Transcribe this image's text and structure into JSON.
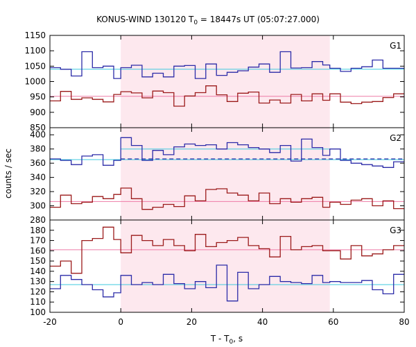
{
  "title_main": "KONUS-WIND 130120 T",
  "title_sub": "0",
  "title_rest": " = 18447s UT (05:07:27.000)",
  "ylabel": "counts / sec",
  "xlabel_main": "T - T",
  "xlabel_sub": "0",
  "xlabel_rest": ", s",
  "colors": {
    "blue": "#2b2ba8",
    "red": "#9b1a1a",
    "cyan": "#3fc9df",
    "pink": "#ee7ba6",
    "shade": "#fde8ee"
  },
  "chart_data": {
    "type": "line",
    "step": "histogram",
    "x": {
      "label": "T - T0, s",
      "lim": [
        -20,
        80
      ],
      "ticks": [
        -20,
        0,
        20,
        40,
        60,
        80
      ]
    },
    "shaded_interval": [
      0,
      59
    ],
    "panels": [
      {
        "name": "G1",
        "ylim": [
          850,
          1150
        ],
        "yticks": [
          850,
          900,
          950,
          1000,
          1050,
          1100,
          1150
        ],
        "series": [
          {
            "color": "blue",
            "edges": [
              -20,
              -17,
              -14,
              -11,
              -8,
              -5,
              -2,
              0,
              3,
              6,
              9,
              12,
              15,
              18,
              21,
              24,
              27,
              30,
              33,
              36,
              39,
              42,
              45,
              48,
              51,
              54,
              57,
              59,
              62,
              65,
              68,
              71,
              74,
              77,
              80
            ],
            "values": [
              1045,
              1040,
              1018,
              1097,
              1045,
              1050,
              1010,
              1045,
              1053,
              1015,
              1027,
              1015,
              1050,
              1052,
              1010,
              1057,
              1020,
              1030,
              1035,
              1047,
              1057,
              1030,
              1097,
              1044,
              1045,
              1065,
              1054,
              1043,
              1033,
              1043,
              1048,
              1070,
              1043,
              1043
            ]
          },
          {
            "color": "red",
            "edges": [
              -20,
              -17,
              -14,
              -11,
              -8,
              -5,
              -2,
              0,
              3,
              6,
              9,
              12,
              15,
              18,
              21,
              24,
              27,
              30,
              33,
              36,
              39,
              42,
              45,
              48,
              51,
              54,
              57,
              59,
              62,
              65,
              68,
              71,
              74,
              77,
              80
            ],
            "values": [
              937,
              968,
              942,
              947,
              942,
              934,
              958,
              967,
              963,
              947,
              969,
              964,
              920,
              953,
              964,
              986,
              957,
              935,
              962,
              966,
              930,
              940,
              930,
              958,
              937,
              960,
              939,
              960,
              933,
              928,
              933,
              935,
              948,
              960,
              967
            ]
          }
        ],
        "reference_lines": [
          {
            "color": "cyan",
            "value": 1040
          },
          {
            "color": "pink",
            "value": 952
          }
        ]
      },
      {
        "name": "G2",
        "ylim": [
          280,
          410
        ],
        "yticks": [
          280,
          300,
          320,
          340,
          360,
          380,
          400
        ],
        "series": [
          {
            "color": "blue",
            "edges": [
              -20,
              -17,
              -14,
              -11,
              -8,
              -5,
              -2,
              0,
              3,
              6,
              9,
              12,
              15,
              18,
              21,
              24,
              27,
              30,
              33,
              36,
              39,
              42,
              45,
              48,
              51,
              54,
              57,
              59,
              62,
              65,
              68,
              71,
              74,
              77,
              80
            ],
            "values": [
              366,
              364,
              358,
              370,
              372,
              357,
              364,
              396,
              385,
              364,
              378,
              372,
              383,
              387,
              385,
              386,
              380,
              389,
              386,
              382,
              380,
              375,
              385,
              363,
              394,
              382,
              371,
              380,
              364,
              360,
              358,
              356,
              354,
              362,
              367
            ]
          },
          {
            "color": "red",
            "edges": [
              -20,
              -17,
              -14,
              -11,
              -8,
              -5,
              -2,
              0,
              3,
              6,
              9,
              12,
              15,
              18,
              21,
              24,
              27,
              30,
              33,
              36,
              39,
              42,
              45,
              48,
              51,
              54,
              57,
              59,
              62,
              65,
              68,
              71,
              74,
              77,
              80
            ],
            "values": [
              298,
              315,
              303,
              305,
              313,
              310,
              316,
              325,
              310,
              295,
              298,
              302,
              299,
              314,
              307,
              323,
              324,
              318,
              315,
              307,
              318,
              303,
              310,
              305,
              310,
              312,
              298,
              305,
              302,
              308,
              310,
              300,
              307,
              296,
              309
            ]
          }
        ],
        "reference_lines": [
          {
            "color": "cyan",
            "value": 380,
            "xrange": [
              0,
              59
            ]
          },
          {
            "color": "cyan",
            "value": 365
          },
          {
            "color": "pink",
            "value": 306
          }
        ],
        "dashed_lines": [
          {
            "color": "blue",
            "value": 366,
            "xrange": [
              0,
              80
            ]
          }
        ]
      },
      {
        "name": "G3",
        "ylim": [
          100,
          190
        ],
        "yticks": [
          100,
          110,
          120,
          130,
          140,
          150,
          160,
          170,
          180
        ],
        "series": [
          {
            "color": "blue",
            "edges": [
              -20,
              -17,
              -14,
              -11,
              -8,
              -5,
              -2,
              0,
              3,
              6,
              9,
              12,
              15,
              18,
              21,
              24,
              27,
              30,
              33,
              36,
              39,
              42,
              45,
              48,
              51,
              54,
              57,
              59,
              62,
              65,
              68,
              71,
              74,
              77,
              80
            ],
            "values": [
              123,
              136,
              132,
              127,
              122,
              115,
              119,
              136,
              127,
              129,
              127,
              137,
              128,
              123,
              130,
              124,
              146,
              111,
              139,
              123,
              127,
              135,
              130,
              129,
              128,
              136,
              129,
              130,
              129,
              129,
              131,
              122,
              118,
              137,
              123
            ]
          },
          {
            "color": "red",
            "edges": [
              -20,
              -17,
              -14,
              -11,
              -8,
              -5,
              -2,
              0,
              3,
              6,
              9,
              12,
              15,
              18,
              21,
              24,
              27,
              30,
              33,
              36,
              39,
              42,
              45,
              48,
              51,
              54,
              57,
              59,
              62,
              65,
              68,
              71,
              74,
              77,
              80
            ],
            "values": [
              145,
              150,
              138,
              170,
              172,
              183,
              171,
              158,
              175,
              170,
              165,
              171,
              165,
              160,
              176,
              164,
              168,
              170,
              173,
              165,
              162,
              154,
              174,
              161,
              164,
              165,
              160,
              160,
              152,
              165,
              155,
              157,
              161,
              165,
              164
            ]
          }
        ],
        "reference_lines": [
          {
            "color": "cyan",
            "value": 127
          },
          {
            "color": "pink",
            "value": 161
          }
        ]
      }
    ]
  }
}
